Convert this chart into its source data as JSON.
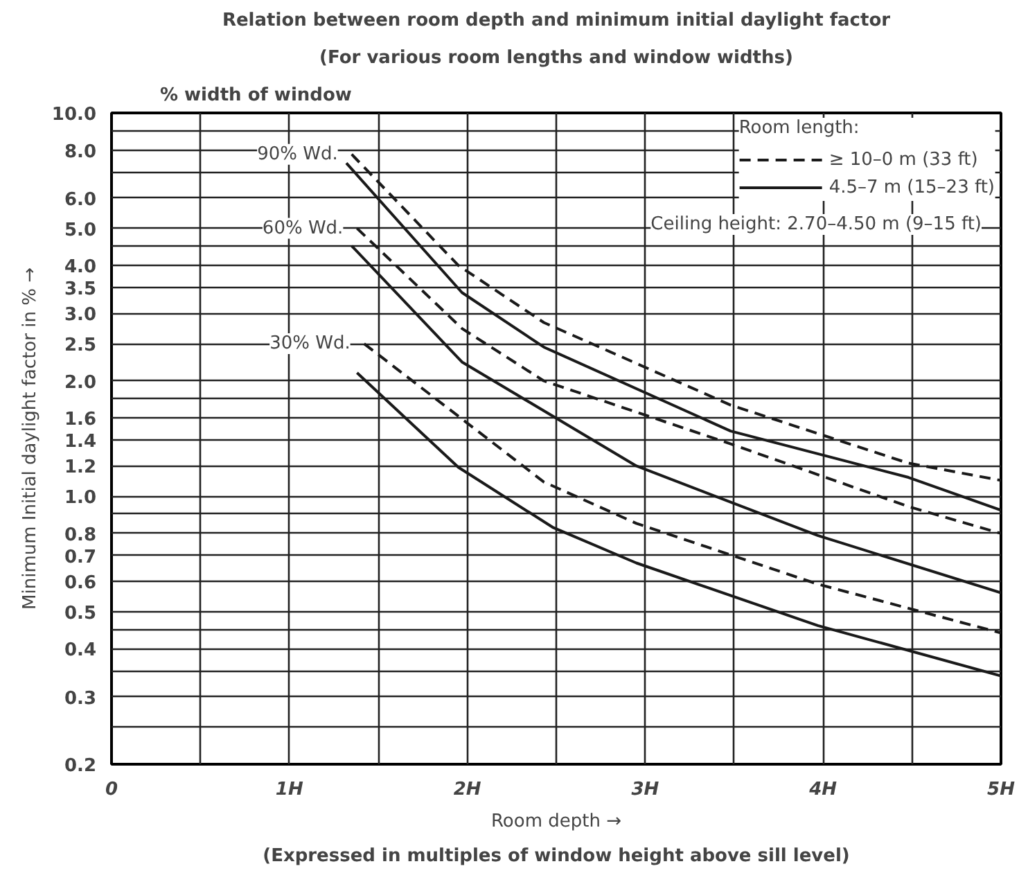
{
  "chart_data": {
    "type": "line",
    "title": "Relation between room depth and minimum initial daylight factor",
    "subtitle": "(For various room lengths and window widths)",
    "xlabel": "Room depth →",
    "ylabel": "Minimum Initial daylight factor in % →",
    "legend_title": "Room length:",
    "log": "y",
    "grid": true,
    "legend": "top right",
    "xlim": [
      0,
      5
    ],
    "ylim": [
      0.2,
      10
    ],
    "xticks": [
      0,
      {
        "value": 0.5,
        "label": null
      },
      {
        "value": 1,
        "label": "1H"
      },
      {
        "value": 1.5,
        "label": null
      },
      {
        "value": 2,
        "label": "2H"
      },
      {
        "value": 2.5,
        "label": null
      },
      {
        "value": 3,
        "label": "3H"
      },
      {
        "value": 3.5,
        "label": null
      },
      {
        "value": 4,
        "label": "4H"
      },
      {
        "value": 4.5,
        "label": null
      },
      {
        "value": 5,
        "label": "5H"
      }
    ],
    "yticks": [
      {
        "value": 0.2,
        "label": "0.2"
      },
      {
        "value": 0.25,
        "label": null
      },
      0.3,
      {
        "value": 0.35,
        "label": null
      },
      0.4,
      {
        "value": 0.45,
        "label": null
      },
      0.5,
      0.6,
      0.7,
      0.8,
      {
        "value": 0.9,
        "label": null
      },
      {
        "value": 1,
        "label": "1.0"
      },
      1.2,
      1.4,
      1.6,
      {
        "value": 1.8,
        "label": null
      },
      {
        "value": 2,
        "label": "2.0"
      },
      2.5,
      {
        "value": 3,
        "label": "3.0"
      },
      3.5,
      {
        "value": 4,
        "label": "4.0"
      },
      {
        "value": 4.5,
        "label": null
      },
      {
        "value": 5,
        "label": "5.0"
      },
      {
        "value": 6,
        "label": "6.0"
      },
      {
        "value": 7,
        "label": null
      },
      {
        "value": 8,
        "label": "8.0"
      },
      {
        "value": 9,
        "label": null
      },
      {
        "value": 10,
        "label": "10.0"
      }
    ],
    "series": [
      {
        "name": "≥ 10–0 m (33 ft)",
        "color": "#1a1a1a",
        "line_style": "dashed",
        "x": [
          1.35,
          1.95,
          2.43,
          3.48,
          4.48,
          5.0
        ],
        "values": [
          7.8,
          4.0,
          2.84,
          1.73,
          1.22,
          1.1
        ]
      },
      {
        "name": "4.5–7 m (15–23 ft)",
        "color": "#1a1a1a",
        "line_style": "solid",
        "x": [
          1.32,
          1.97,
          2.43,
          3.48,
          4.48,
          5.0
        ],
        "values": [
          7.4,
          3.4,
          2.45,
          1.48,
          1.12,
          0.92
        ]
      },
      {
        "color": "#1a1a1a",
        "line_style": "dashed",
        "x": [
          1.38,
          1.97,
          2.43,
          3.48,
          4.48,
          5.0
        ],
        "values": [
          5.0,
          2.74,
          2.0,
          1.37,
          0.94,
          0.8
        ]
      },
      {
        "color": "#1a1a1a",
        "line_style": "solid",
        "x": [
          1.35,
          1.97,
          2.95,
          3.97,
          5.0
        ],
        "values": [
          4.5,
          2.24,
          1.2,
          0.79,
          0.56
        ]
      },
      {
        "color": "#1a1a1a",
        "line_style": "dashed",
        "x": [
          1.42,
          2.43,
          2.95,
          3.97,
          5.0
        ],
        "values": [
          2.5,
          1.09,
          0.85,
          0.59,
          0.44
        ]
      },
      {
        "color": "#1a1a1a",
        "line_style": "solid",
        "x": [
          1.38,
          1.95,
          2.48,
          2.95,
          3.97,
          5.0
        ],
        "values": [
          2.1,
          1.19,
          0.83,
          0.67,
          0.46,
          0.34
        ]
      }
    ],
    "annotations": [
      "% width of window",
      "Ceiling height: 2.70–4.50 m (9–15 ft)",
      "(Expressed in multiples of window height above sill level)",
      {
        "text": "90% Wd.",
        "x": 1.35,
        "y": 7.8
      },
      {
        "text": "60% Wd.",
        "x": 1.38,
        "y": 5.0
      },
      {
        "text": "30% Wd.",
        "x": 1.42,
        "y": 2.5
      }
    ]
  }
}
